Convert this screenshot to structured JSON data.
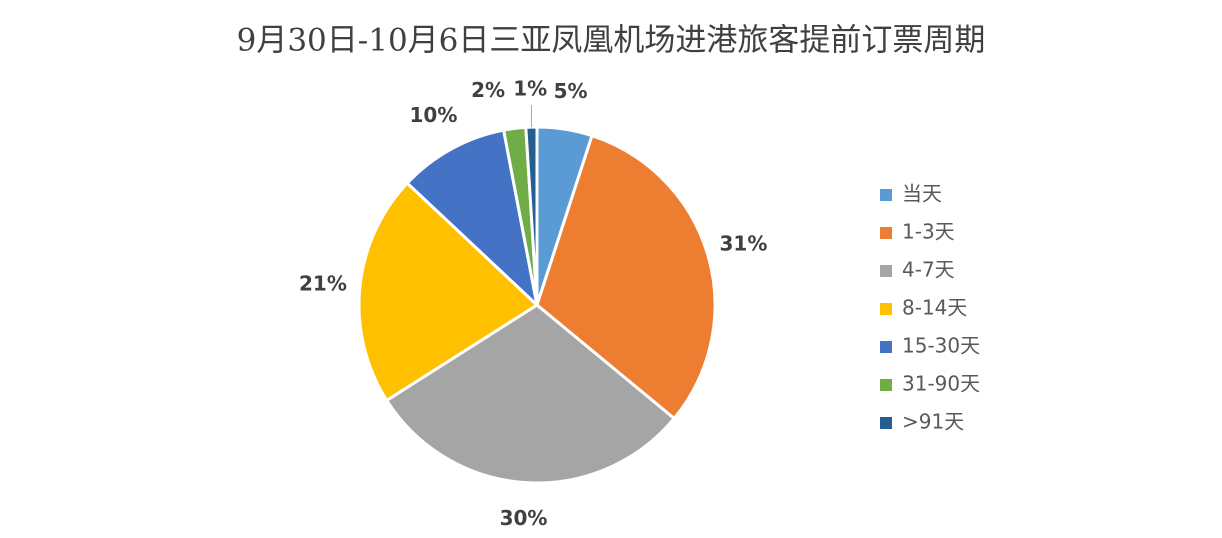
{
  "chart_data": {
    "type": "pie",
    "title": "9月30日-10月6日三亚凤凰机场进港旅客提前订票周期",
    "categories": [
      "当天",
      "1-3天",
      "4-7天",
      "8-14天",
      "15-30天",
      "31-90天",
      ">91天"
    ],
    "values": [
      5,
      31,
      30,
      21,
      10,
      2,
      1
    ],
    "value_labels": [
      "5%",
      "31%",
      "30%",
      "21%",
      "10%",
      "2%",
      "1%"
    ],
    "colors": [
      "#5b9bd5",
      "#ed7d31",
      "#a5a5a5",
      "#ffc000",
      "#4472c4",
      "#70ad47",
      "#255e91"
    ],
    "legend": "right"
  }
}
